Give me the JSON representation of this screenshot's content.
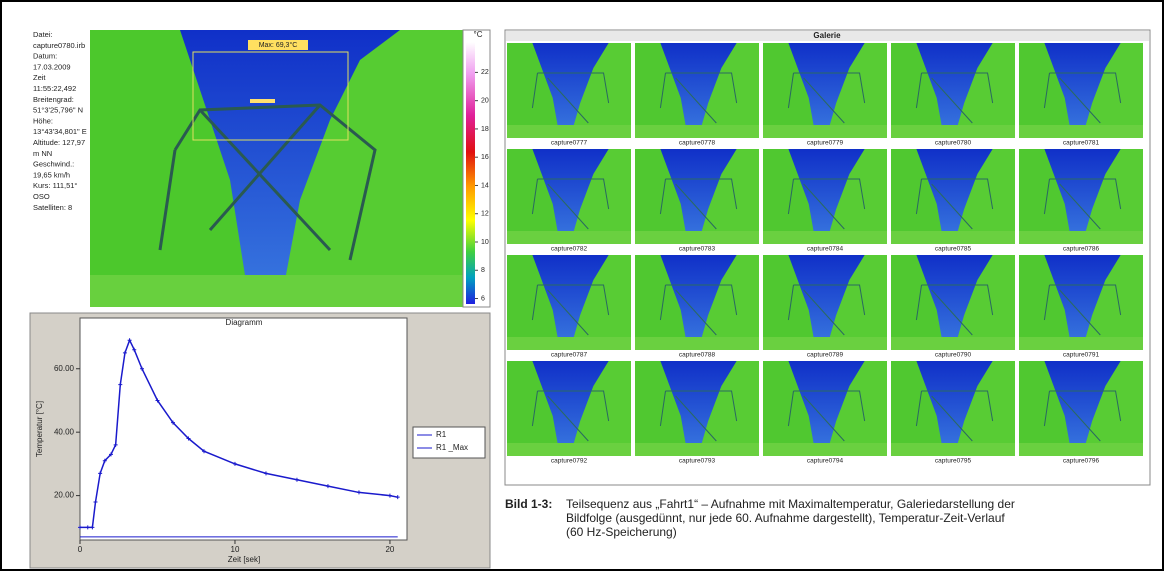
{
  "metadata": {
    "lines": [
      "Datei:",
      "capture0780.irb",
      "Datum:",
      "17.03.2009",
      "Zeit",
      "11:55:22,492",
      "Breitengrad:",
      "51°3'25,796\" N",
      "Höhe:",
      "13°43'34,801\" E",
      "Altitude: 127,97",
      "m NN",
      "Geschwind.:",
      "19,65 km/h",
      "Kurs: 111,51°",
      "OSO",
      "Satelliten: 8"
    ]
  },
  "thermal": {
    "max_label": "Max: 69,3°C",
    "unit": "°C",
    "clim": [
      5.4,
      25
    ],
    "ticks": [
      6,
      8,
      10,
      12,
      14,
      16,
      18,
      20,
      22
    ]
  },
  "diagram": {
    "type": "line",
    "title": "Diagramm",
    "x_label": "Zeit [sek]",
    "y_label": "Temperatur [°C]",
    "x": [
      0,
      0.5,
      0.8,
      1,
      1.3,
      1.6,
      2,
      2.3,
      2.6,
      2.9,
      3.2,
      3.5,
      4,
      5,
      6,
      7,
      8,
      10,
      12,
      14,
      16,
      18,
      20,
      20.5
    ],
    "series": [
      {
        "name": "R1",
        "color": "#1a1acc",
        "values": [
          7,
          7,
          7,
          7,
          7,
          7,
          7,
          7,
          7,
          7,
          7,
          7,
          7,
          7,
          7,
          7,
          7,
          7,
          7,
          7,
          7,
          7,
          7,
          7
        ]
      },
      {
        "name": "R1 _Max",
        "color": "#1a1acc",
        "values": [
          10,
          10,
          10,
          18,
          27,
          31,
          33,
          36,
          55,
          65,
          69,
          66,
          60,
          50,
          43,
          38,
          34,
          30,
          27,
          25,
          23,
          21,
          20,
          19.5
        ]
      }
    ],
    "xlim": [
      0,
      21.1
    ],
    "ylim": [
      6,
      76
    ],
    "xticks": [
      0,
      10,
      20
    ],
    "yticks": [
      {
        "value": 20,
        "label": "20.00"
      },
      {
        "value": 40,
        "label": "40.00"
      },
      {
        "value": 60,
        "label": "60.00"
      }
    ]
  },
  "gallery": {
    "title": "Galerie",
    "captions": [
      "capture0777",
      "capture0778",
      "capture0779",
      "capture0780",
      "capture0781",
      "capture0782",
      "capture0783",
      "capture0784",
      "capture0785",
      "capture0786",
      "capture0787",
      "capture0788",
      "capture0789",
      "capture0790",
      "capture0791",
      "capture0792",
      "capture0793",
      "capture0794",
      "capture0795",
      "capture0796"
    ]
  },
  "caption": {
    "label": "Bild 1-3:",
    "lines": [
      "Teilsequenz aus „Fahrt1“ – Aufnahme mit Maximaltemperatur, Galeriedarstellung der",
      "Bildfolge (ausgedünnt, nur jede 60. Aufnahme dargestellt), Temperatur-Zeit-Verlauf",
      "(60 Hz-Speicherung)"
    ]
  }
}
